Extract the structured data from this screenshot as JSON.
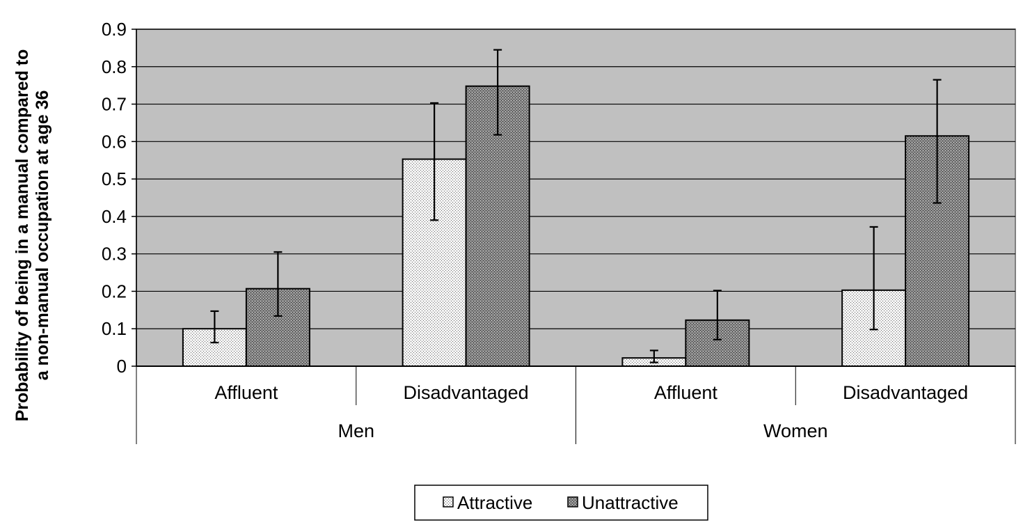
{
  "chart_data": {
    "type": "bar",
    "title": "",
    "ylabel_lines": [
      "Probability of being in a manual compared to",
      "a non-manual occupation at age 36"
    ],
    "ylim": [
      0,
      0.9
    ],
    "yticks": [
      "0",
      "0.1",
      "0.2",
      "0.3",
      "0.4",
      "0.5",
      "0.6",
      "0.7",
      "0.8",
      "0.9"
    ],
    "grid": true,
    "legend_position": "bottom",
    "groups": [
      {
        "label": "Men",
        "categories": [
          "Affluent",
          "Disadvantaged"
        ]
      },
      {
        "label": "Women",
        "categories": [
          "Affluent",
          "Disadvantaged"
        ]
      }
    ],
    "categories": [
      "Affluent",
      "Disadvantaged",
      "Affluent",
      "Disadvantaged"
    ],
    "series": [
      {
        "name": "Attractive",
        "values": [
          0.1,
          0.553,
          0.022,
          0.203
        ],
        "error_low": [
          0.063,
          0.39,
          0.01,
          0.098
        ],
        "error_high": [
          0.147,
          0.703,
          0.042,
          0.372
        ],
        "pattern": "light-dotted"
      },
      {
        "name": "Unattractive",
        "values": [
          0.207,
          0.748,
          0.123,
          0.615
        ],
        "error_low": [
          0.134,
          0.618,
          0.071,
          0.436
        ],
        "error_high": [
          0.305,
          0.845,
          0.202,
          0.765
        ],
        "pattern": "dark-dotted"
      }
    ],
    "colors": {
      "plot_background": "#c0c0c0",
      "gridline": "#000000",
      "attractive_fill": "#f2f2f2",
      "unattractive_fill": "#8a8a8a"
    }
  }
}
